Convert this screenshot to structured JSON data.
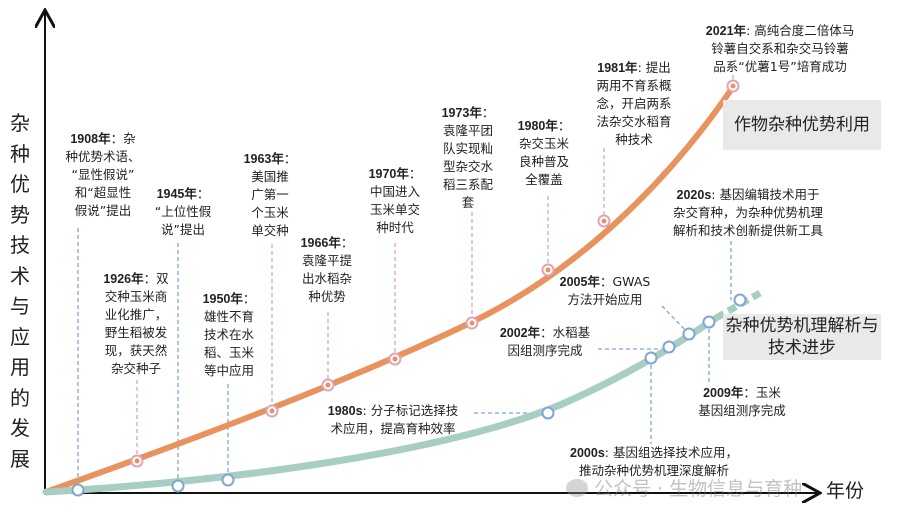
{
  "y_axis_label": "杂种优势技术与应用的发展",
  "x_axis_label": "年份",
  "colors": {
    "crop_curve": "#e8935e",
    "mechanism_curve": "#a8cdc2",
    "crop_marker": "#e2a3b4",
    "mech_marker": "#7fa7d2"
  },
  "categories": {
    "crop": "作物杂种优势利用",
    "mechanism": "杂种优势机理解析与技术进步"
  },
  "events": [
    {
      "year": "1908年",
      "text": "：杂\n种优势术语、\n“显性假说”\n和“超显性\n假说”提出",
      "track": "mechanism"
    },
    {
      "year": "1926年",
      "text": "：双\n交种玉米商\n业化推广，\n野生稻被发\n现，获天然\n杂交种子",
      "track": "crop"
    },
    {
      "year": "1945年",
      "text": "：\n“上位性假\n说”提出",
      "track": "mechanism"
    },
    {
      "year": "1950年",
      "text": "：\n雄性不育\n技术在水\n稻、玉米\n等中应用",
      "track": "mechanism"
    },
    {
      "year": "1963年",
      "text": "：\n美国推\n广第一\n个玉米\n单交种",
      "track": "crop"
    },
    {
      "year": "1966年",
      "text": "：\n袁隆平提\n出水稻杂\n种优势",
      "track": "crop"
    },
    {
      "year": "1970年",
      "text": "：\n中国进入\n玉米单交\n种时代",
      "track": "crop"
    },
    {
      "year": "1973年",
      "text": "：\n袁隆平团\n队实现籼\n型杂交水\n稻三系配\n套",
      "track": "crop"
    },
    {
      "year": "1980年",
      "text": "：\n杂交玉米\n良种普及\n全覆盖",
      "track": "crop"
    },
    {
      "year": "1981年",
      "text": ": 提出\n两用不育系概\n念，开启两系\n法杂交水稻育\n种技术",
      "track": "crop"
    },
    {
      "year": "2021年",
      "text": ": 高纯合度二倍体马\n铃薯自交系和杂交马铃薯\n品系“优薯1号”培育成功",
      "track": "crop"
    },
    {
      "year": "2020s",
      "text": ": 基因编辑技术用于\n杂交育种，为杂种优势机理\n解析和技术创新提供新工具",
      "track": "mechanism"
    },
    {
      "year": "2005年",
      "text": "：GWAS\n方法开始应用",
      "track": "mechanism"
    },
    {
      "year": "2002年",
      "text": "：水稻基\n因组测序完成",
      "track": "mechanism"
    },
    {
      "year": "1980s",
      "text": ": 分子标记选择技\n术应用，提高育种效率",
      "track": "mechanism"
    },
    {
      "year": "2009年",
      "text": "：玉米\n基因组测序完成",
      "track": "mechanism"
    },
    {
      "year": "2000s",
      "text": ": 基因组选择技术应用，\n推动杂种优势机理深度解析",
      "track": "mechanism"
    }
  ],
  "watermark": "公众号 · 生物信息与育种"
}
